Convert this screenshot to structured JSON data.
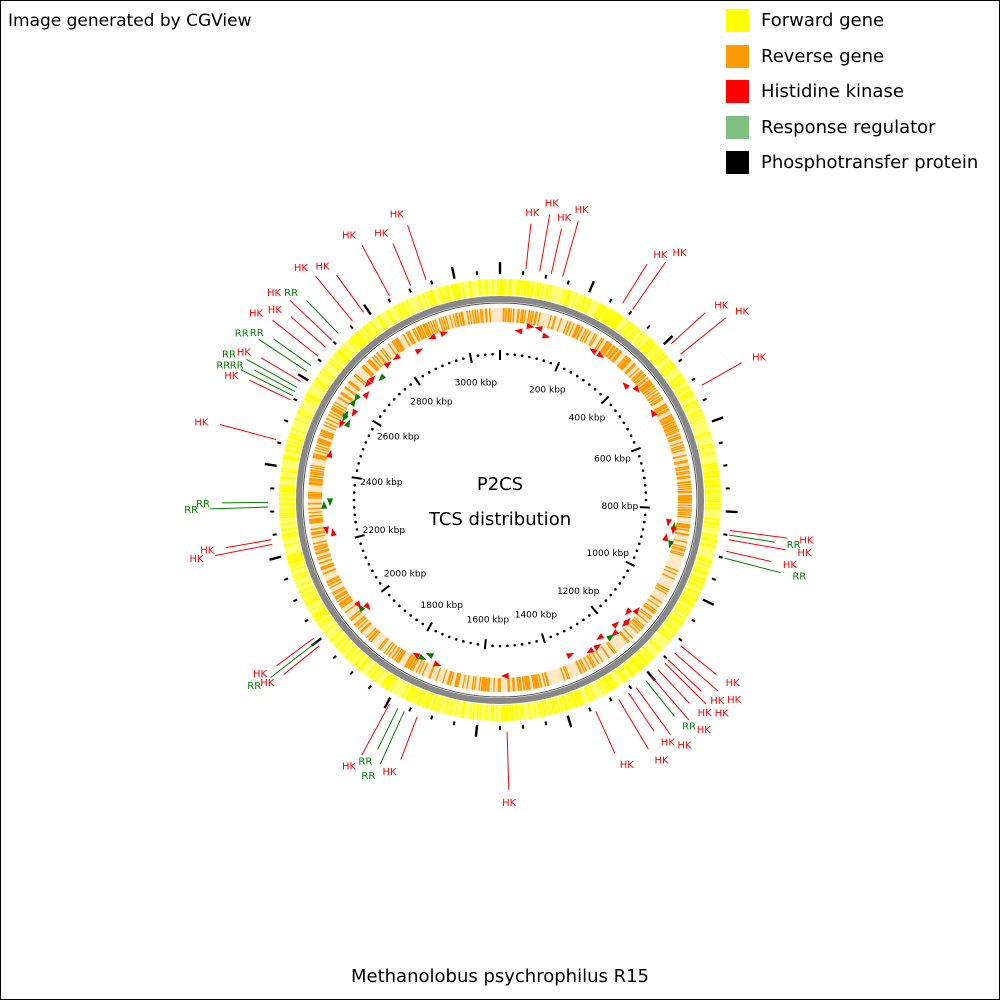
{
  "credit": "Image generated by CGView",
  "organism": "Methanolobus psychrophilus R15",
  "center": {
    "line1": "P2CS",
    "line2": "TCS distribution"
  },
  "legend": [
    {
      "label": "Forward gene",
      "color": "#ffff00"
    },
    {
      "label": "Reverse gene",
      "color": "#ff9a00"
    },
    {
      "label": "Histidine kinase",
      "color": "#ff0000"
    },
    {
      "label": "Response regulator",
      "color": "#7fbf7f"
    },
    {
      "label": "Phosphotransfer protein",
      "color": "#000000"
    }
  ],
  "colors": {
    "forward": "#ffff00",
    "reverse": "#ff9a00",
    "hk": "#ff0000",
    "rr_label": "#008000",
    "rr_arrow": "#008000",
    "backbone": "#888888",
    "ticks": "#000000"
  },
  "genome_kbp": 3100,
  "axis": {
    "tick_labels": [
      "200 kbp",
      "400 kbp",
      "600 kbp",
      "800 kbp",
      "1000 kbp",
      "1200 kbp",
      "1400 kbp",
      "1600 kbp",
      "1800 kbp",
      "2000 kbp",
      "2200 kbp",
      "2400 kbp",
      "2600 kbp",
      "2800 kbp",
      "3000 kbp"
    ],
    "tick_positions_kbp": [
      200,
      400,
      600,
      800,
      1000,
      1200,
      1400,
      1600,
      1800,
      2000,
      2200,
      2400,
      2600,
      2800,
      3000
    ]
  },
  "tcs_features": [
    {
      "type": "HK",
      "kbp": 55
    },
    {
      "type": "HK",
      "kbp": 85
    },
    {
      "type": "HK",
      "kbp": 110
    },
    {
      "type": "HK",
      "kbp": 135
    },
    {
      "type": "HK",
      "kbp": 275
    },
    {
      "type": "HK",
      "kbp": 300
    },
    {
      "type": "HK",
      "kbp": 410
    },
    {
      "type": "HK",
      "kbp": 440
    },
    {
      "type": "HK",
      "kbp": 520
    },
    {
      "type": "HK",
      "kbp": 840
    },
    {
      "type": "RR",
      "kbp": 850
    },
    {
      "type": "HK",
      "kbp": 860
    },
    {
      "type": "HK",
      "kbp": 885
    },
    {
      "type": "RR",
      "kbp": 900
    },
    {
      "type": "HK",
      "kbp": 1110
    },
    {
      "type": "HK",
      "kbp": 1130
    },
    {
      "type": "HK",
      "kbp": 1150
    },
    {
      "type": "HK",
      "kbp": 1160
    },
    {
      "type": "HK",
      "kbp": 1180
    },
    {
      "type": "HK",
      "kbp": 1200
    },
    {
      "type": "RR",
      "kbp": 1215
    },
    {
      "type": "HK",
      "kbp": 1240
    },
    {
      "type": "HK",
      "kbp": 1260
    },
    {
      "type": "HK",
      "kbp": 1285
    },
    {
      "type": "HK",
      "kbp": 1340
    },
    {
      "type": "HK",
      "kbp": 1535
    },
    {
      "type": "HK",
      "kbp": 1730
    },
    {
      "type": "RR",
      "kbp": 1760
    },
    {
      "type": "RR",
      "kbp": 1775
    },
    {
      "type": "HK",
      "kbp": 1795
    },
    {
      "type": "HK",
      "kbp": 1990
    },
    {
      "type": "RR",
      "kbp": 2000
    },
    {
      "type": "HK",
      "kbp": 2010
    },
    {
      "type": "HK",
      "kbp": 2230
    },
    {
      "type": "HK",
      "kbp": 2240
    },
    {
      "type": "RR",
      "kbp": 2310
    },
    {
      "type": "RR",
      "kbp": 2320
    },
    {
      "type": "HK",
      "kbp": 2455
    },
    {
      "type": "HK",
      "kbp": 2545
    },
    {
      "type": "RR",
      "kbp": 2555
    },
    {
      "type": "RR",
      "kbp": 2565
    },
    {
      "type": "RR",
      "kbp": 2575
    },
    {
      "type": "HK",
      "kbp": 2590
    },
    {
      "type": "RR",
      "kbp": 2615
    },
    {
      "type": "RR",
      "kbp": 2630
    },
    {
      "type": "HK",
      "kbp": 2655
    },
    {
      "type": "HK",
      "kbp": 2680
    },
    {
      "type": "HK",
      "kbp": 2700
    },
    {
      "type": "RR",
      "kbp": 2720
    },
    {
      "type": "HK",
      "kbp": 2760
    },
    {
      "type": "HK",
      "kbp": 2790
    },
    {
      "type": "HK",
      "kbp": 2855
    },
    {
      "type": "HK",
      "kbp": 2905
    },
    {
      "type": "HK",
      "kbp": 2940
    }
  ]
}
